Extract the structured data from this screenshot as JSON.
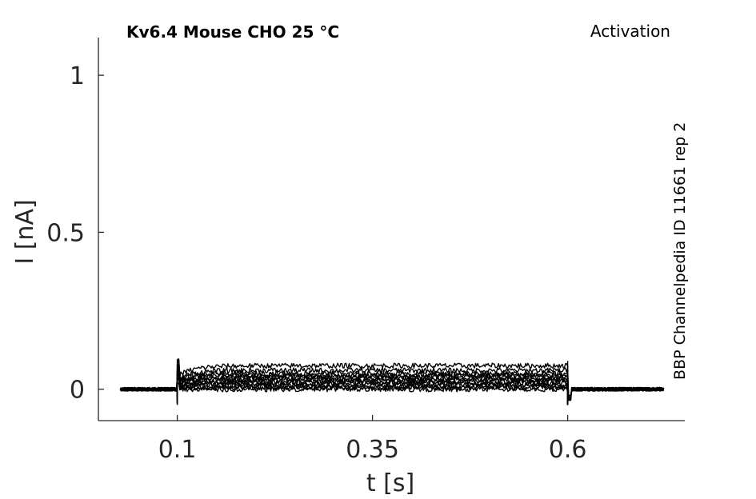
{
  "chart_data": {
    "type": "line",
    "title": "Kv6.4  Mouse  CHO  25 °C",
    "protocol": "Activation",
    "side_label": "BBP Channelpedia ID 11661 rep 2",
    "xlabel": "t [s]",
    "ylabel": "I [nA]",
    "xlim": [
      -0.001,
      0.75
    ],
    "ylim": [
      -0.1,
      1.12
    ],
    "xticks": [
      0.1,
      0.35,
      0.6
    ],
    "xtick_labels": [
      "0.1",
      "0.35",
      "0.6"
    ],
    "yticks": [
      0,
      0.5,
      1
    ],
    "ytick_labels": [
      "0",
      "0.5",
      "1"
    ],
    "grid": false,
    "pulse_start": 0.1,
    "pulse_end": 0.6,
    "trace_start": 0.027,
    "trace_end": 0.723,
    "series_step_levels": [
      0.0,
      0.005,
      0.01,
      0.015,
      0.02,
      0.025,
      0.03,
      0.035,
      0.04,
      0.045,
      0.05,
      0.06,
      0.075
    ],
    "trace_color": "#000000",
    "axis_color": "#262626"
  }
}
